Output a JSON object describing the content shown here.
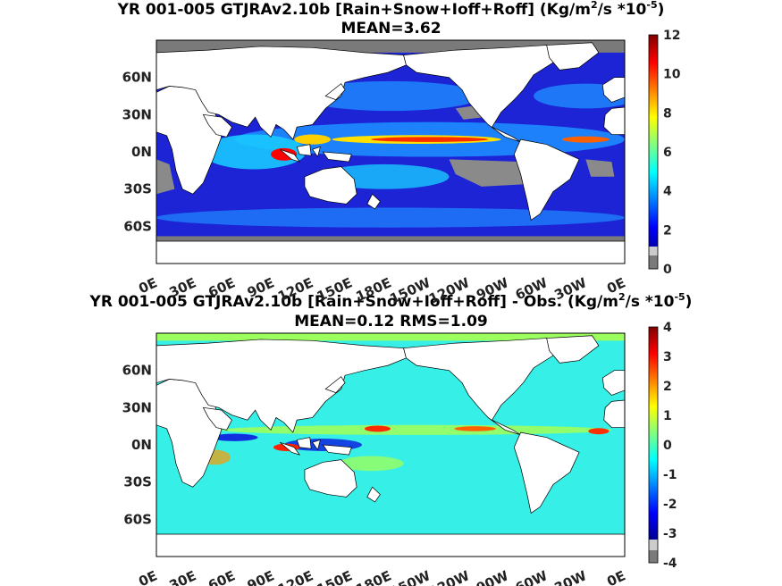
{
  "panels": [
    {
      "title_main": "YR 001-005 GTJRAv2.10b [Rain+Snow+Ioff+Roff] (Kg/m",
      "title_sup1": "2",
      "title_mid": "/s *10",
      "title_sup2": "-5",
      "title_end": ")",
      "stats": "MEAN=3.62",
      "colorbar_ticks": [
        "12",
        "10",
        "8",
        "6",
        "4",
        "2",
        "0"
      ]
    },
    {
      "title_main": "YR 001-005 GTJRAv2.10b [Rain+Snow+Ioff+Roff] - Obs. (Kg/m",
      "title_sup1": "2",
      "title_mid": "/s *10",
      "title_sup2": "-5",
      "title_end": ")",
      "stats": "MEAN=0.12   RMS=1.09",
      "colorbar_ticks": [
        "4",
        "3",
        "2",
        "1",
        "0",
        "-1",
        "-2",
        "-3",
        "-4"
      ]
    }
  ],
  "lat_ticks": [
    "60N",
    "30N",
    "0N",
    "30S",
    "60S"
  ],
  "lon_ticks": [
    "0E",
    "30E",
    "60E",
    "90E",
    "120E",
    "150E",
    "180E",
    "150W",
    "120W",
    "90W",
    "60W",
    "30W",
    "0E"
  ],
  "colors": {
    "land": "#ffffff",
    "ocean_mean": "#2222d8",
    "ocean_diff": "#38f2e8",
    "sea_ice": "#7a7a7a",
    "jet_colormap": [
      "#00008f",
      "#0000ff",
      "#0080ff",
      "#00ffff",
      "#80ff80",
      "#ffff00",
      "#ff8000",
      "#ff0000",
      "#800000"
    ]
  },
  "chart_data": [
    {
      "type": "heatmap",
      "title": "YR 001-005 GTJRAv2.10b [Rain+Snow+Ioff+Roff] (Kg/m2/s *10-5)",
      "subtitle": "MEAN=3.62",
      "x_range_deg": [
        0,
        360
      ],
      "y_range_deg": [
        -90,
        90
      ],
      "colorbar_range": [
        0,
        12
      ],
      "mean": 3.62
    },
    {
      "type": "heatmap",
      "title": "YR 001-005 GTJRAv2.10b [Rain+Snow+Ioff+Roff] - Obs. (Kg/m2/s *10-5)",
      "subtitle": "MEAN=0.12   RMS=1.09",
      "x_range_deg": [
        0,
        360
      ],
      "y_range_deg": [
        -90,
        90
      ],
      "colorbar_range": [
        -4,
        4
      ],
      "mean": 0.12,
      "rms": 1.09
    }
  ]
}
